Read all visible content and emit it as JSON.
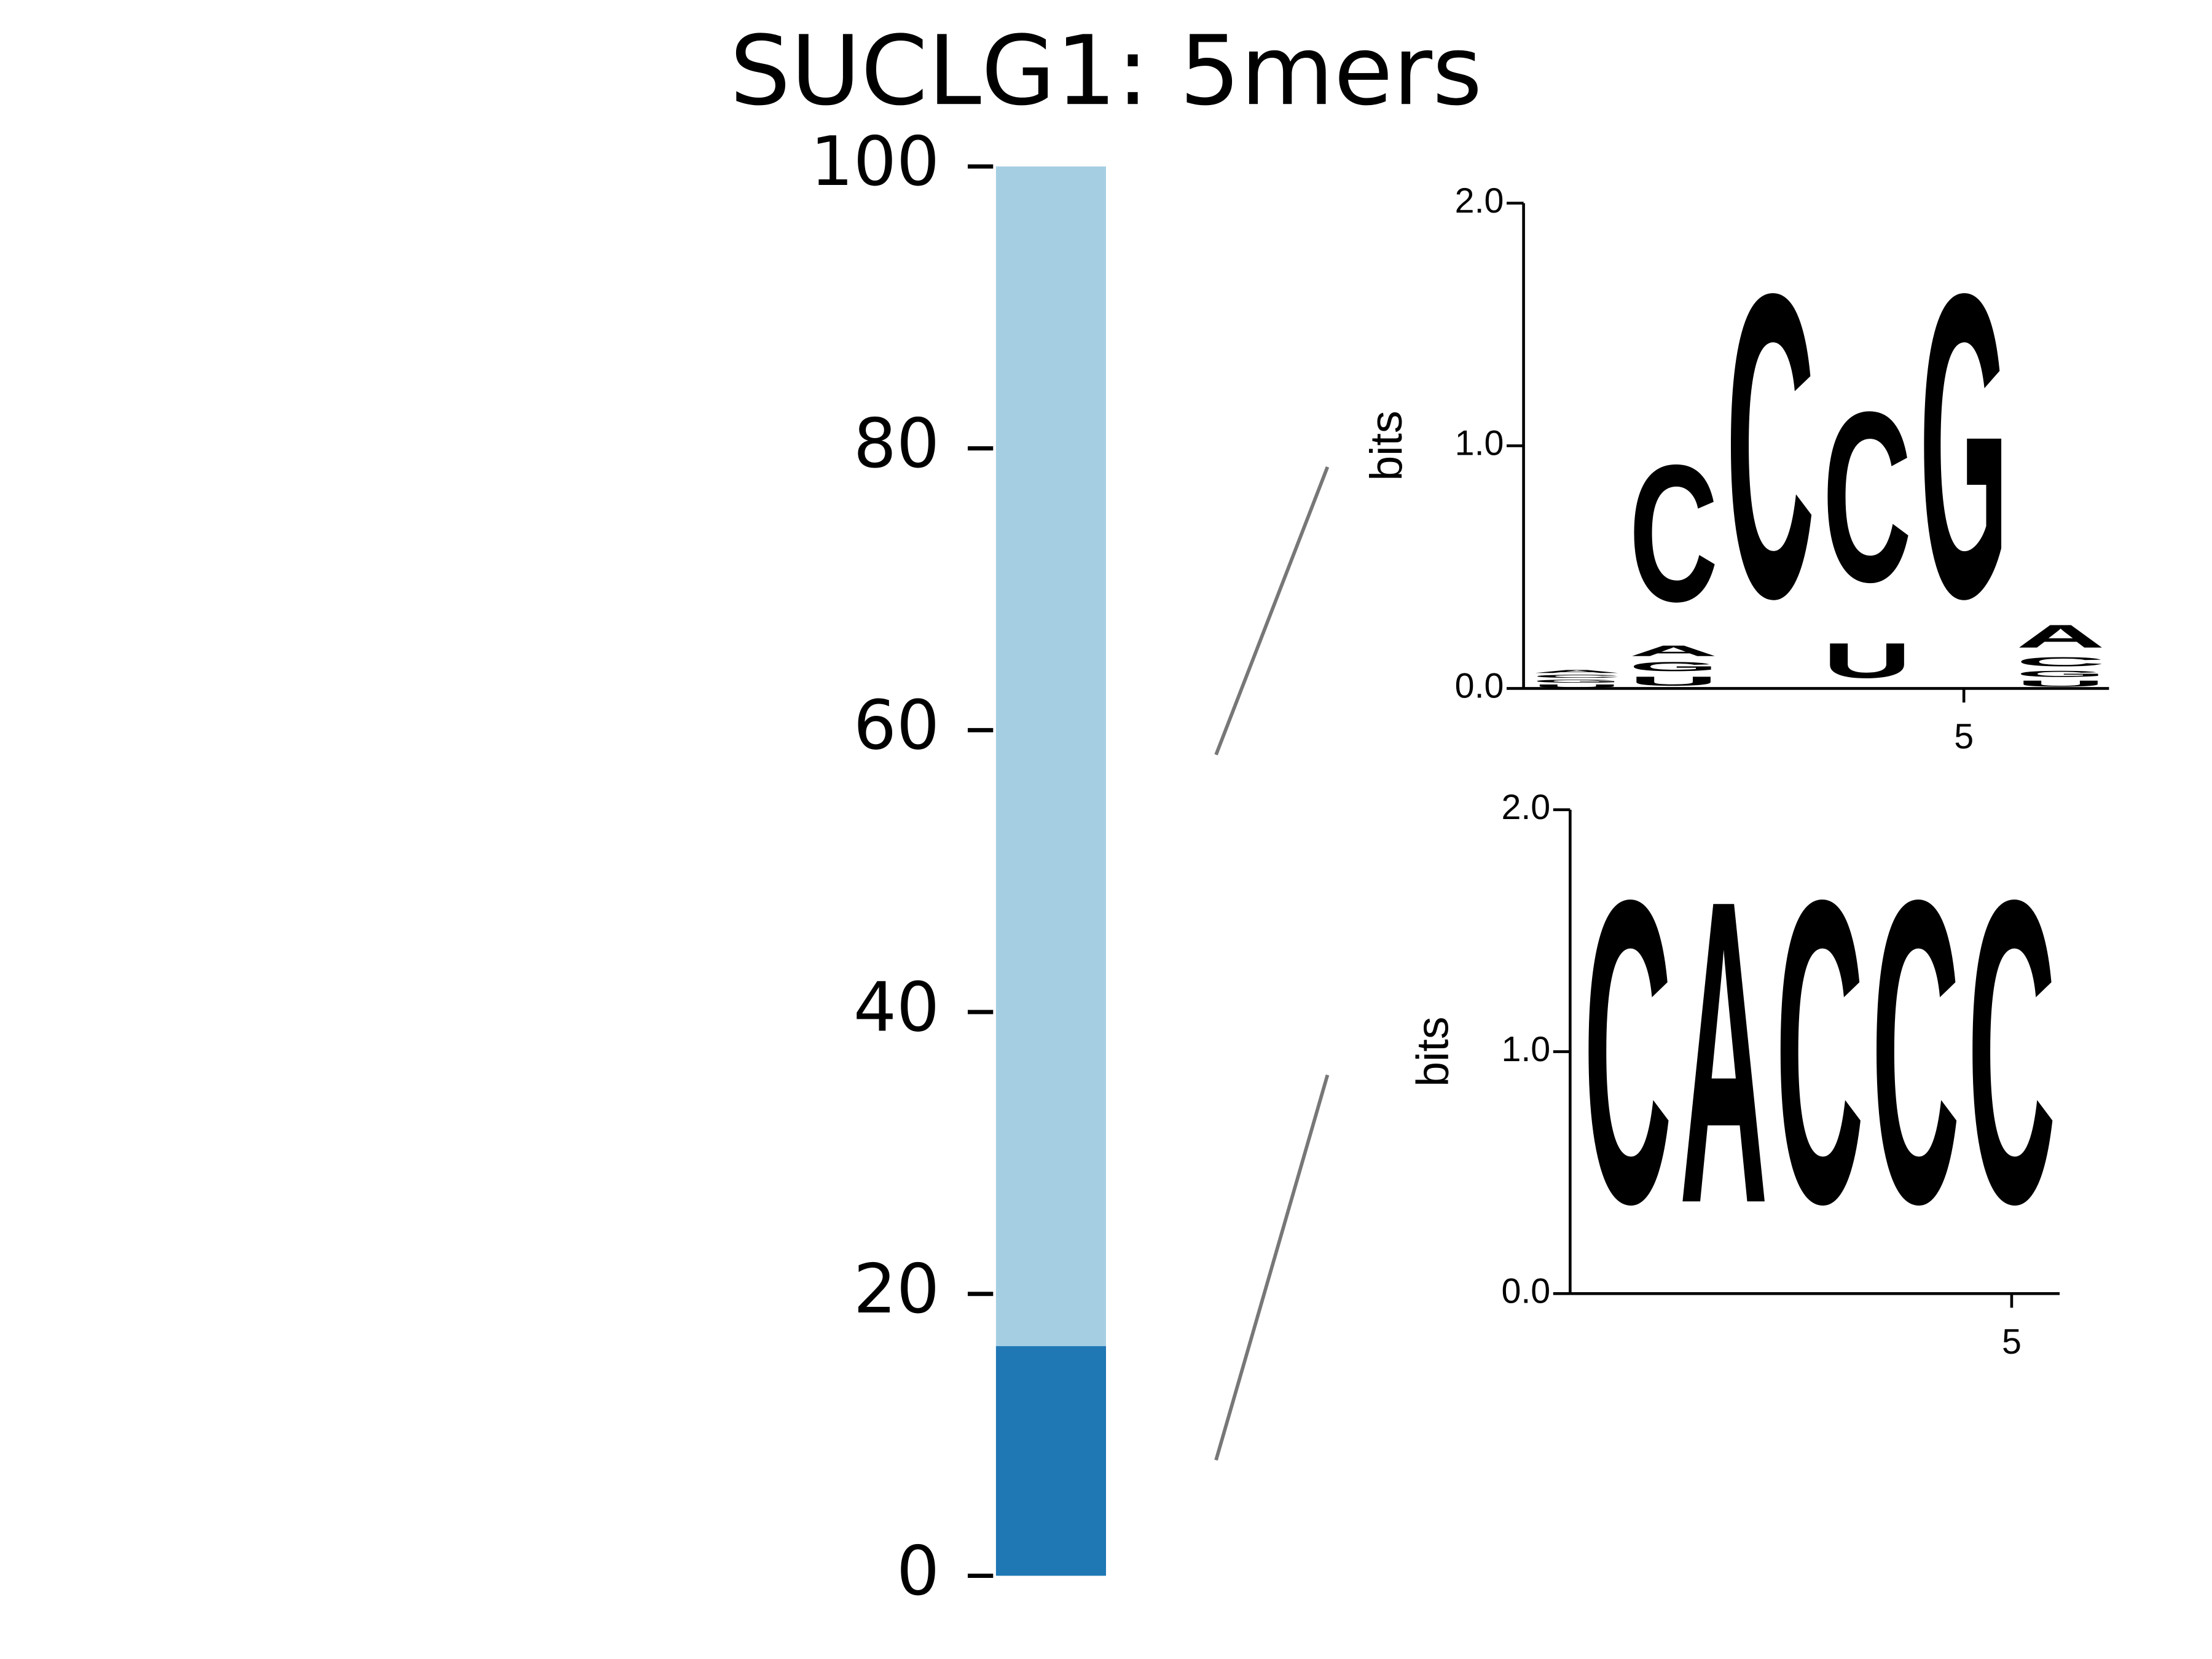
{
  "chart_data": [
    {
      "type": "stacked_bar",
      "title": "SUCLG1: 5mers",
      "ylim": [
        0,
        100
      ],
      "yticks": [
        0,
        20,
        40,
        60,
        80,
        100
      ],
      "series": [
        {
          "color": "#1f77b4",
          "values": [
            16.3
          ]
        },
        {
          "color": "#a6cee3",
          "values": [
            83.7
          ]
        }
      ]
    },
    {
      "type": "logo",
      "ylabel": "bits",
      "ylim": [
        0,
        2
      ],
      "xlim": [
        0.45,
        6.5
      ],
      "yticks": [
        {
          "value": 0,
          "label": "0.0"
        },
        {
          "value": 1,
          "label": "1.0"
        },
        {
          "value": 2,
          "label": "2.0"
        }
      ],
      "xticks": [
        5
      ],
      "colors": {
        "A": "#008000",
        "C": "#0000ff",
        "G": "#ffa500",
        "U": "#ff0000"
      },
      "positions": [
        {
          "letters": [
            "U",
            "G",
            "C",
            "A"
          ],
          "heights": [
            0.02,
            0.02,
            0.02,
            0.02
          ]
        },
        {
          "letters": [
            "U",
            "G",
            "A",
            "C"
          ],
          "heights": [
            0.06,
            0.06,
            0.07,
            0.9
          ]
        },
        {
          "letters": [
            "C"
          ],
          "heights": [
            2.0
          ]
        },
        {
          "letters": [
            "U",
            "C"
          ],
          "heights": [
            0.23,
            1.12
          ]
        },
        {
          "letters": [
            "G"
          ],
          "heights": [
            2.0
          ]
        },
        {
          "letters": [
            "U",
            "G",
            "C",
            "A"
          ],
          "heights": [
            0.04,
            0.04,
            0.06,
            0.15
          ]
        }
      ]
    },
    {
      "type": "logo",
      "ylabel": "bits",
      "ylim": [
        0,
        2
      ],
      "xlim": [
        0.4,
        5.5
      ],
      "yticks": [
        {
          "value": 0,
          "label": "0.0"
        },
        {
          "value": 1,
          "label": "1.0"
        },
        {
          "value": 2,
          "label": "2.0"
        }
      ],
      "xticks": [
        5
      ],
      "colors": {
        "A": "#008000",
        "C": "#0000ff",
        "G": "#ffa500",
        "U": "#ff0000"
      },
      "positions": [
        {
          "letters": [
            "C"
          ],
          "heights": [
            2.0
          ]
        },
        {
          "letters": [
            "A"
          ],
          "heights": [
            2.0
          ]
        },
        {
          "letters": [
            "C"
          ],
          "heights": [
            2.0
          ]
        },
        {
          "letters": [
            "C"
          ],
          "heights": [
            2.0
          ]
        },
        {
          "letters": [
            "C"
          ],
          "heights": [
            2.0
          ]
        }
      ]
    }
  ]
}
